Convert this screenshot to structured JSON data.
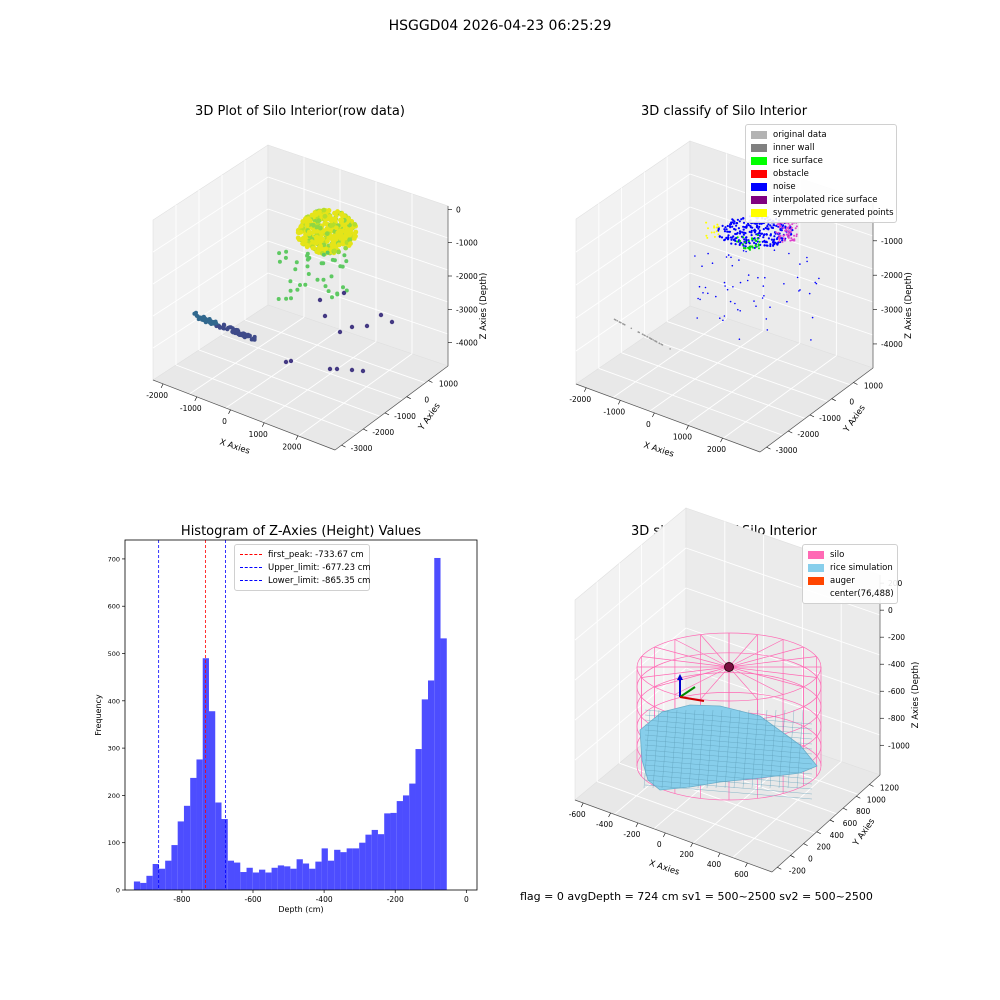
{
  "figure": {
    "suptitle": "HSGGD04 2026-04-23 06:25:29",
    "status_line": "flag = 0     avgDepth = 724 cm  sv1 = 500~2500  sv2 = 500~2500"
  },
  "chart_data": [
    {
      "type": "scatter",
      "projection": "3d",
      "title": "3D Plot of Silo Interior(row data)",
      "xlabel": "X Axies",
      "ylabel": "Y Axies",
      "zlabel": "Z Axies (Depth)",
      "x_ticks": [
        -2000,
        -1000,
        0,
        1000,
        2000
      ],
      "y_ticks": [
        -3000,
        -2000,
        -1000,
        0,
        1000
      ],
      "z_ticks": [
        0,
        -1000,
        -2000,
        -3000,
        -4000
      ],
      "colormap": "viridis",
      "grid": true
    },
    {
      "type": "scatter",
      "projection": "3d",
      "title": "3D classify of Silo Interior",
      "xlabel": "X Axies",
      "ylabel": "Y Axies",
      "zlabel": "Z Axies (Depth)",
      "x_ticks": [
        -2000,
        -1000,
        0,
        1000,
        2000
      ],
      "y_ticks": [
        -3000,
        -2000,
        -1000,
        0,
        1000
      ],
      "z_ticks": [
        -1000,
        -2000,
        -3000,
        -4000
      ],
      "legend_position": "top-right",
      "legend": [
        {
          "label": "original data",
          "color": "#b3b3b3"
        },
        {
          "label": "inner wall",
          "color": "#808080"
        },
        {
          "label": "rice surface",
          "color": "#00ff00"
        },
        {
          "label": "obstacle",
          "color": "#ff0000"
        },
        {
          "label": "noise",
          "color": "#0000ff"
        },
        {
          "label": "interpolated rice surface",
          "color": "#800080"
        },
        {
          "label": "symmetric generated points",
          "color": "#ffff00"
        }
      ],
      "grid": true
    },
    {
      "type": "bar",
      "title": "Histogram of Z-Axies (Height) Values",
      "xlabel": "Depth (cm)",
      "ylabel": "Frequency",
      "bar_color": "#4d4dff",
      "xlim": [
        -960,
        30
      ],
      "ylim": [
        0,
        740
      ],
      "x_ticks": [
        -800,
        -600,
        -400,
        -200,
        0
      ],
      "y_ticks": [
        0,
        100,
        200,
        300,
        400,
        500,
        600,
        700
      ],
      "bin_start": -935,
      "bin_width": 17.6,
      "values": [
        18,
        15,
        30,
        55,
        45,
        62,
        95,
        145,
        178,
        237,
        276,
        490,
        378,
        185,
        150,
        62,
        58,
        38,
        47,
        37,
        43,
        37,
        47,
        52,
        50,
        45,
        65,
        56,
        45,
        60,
        88,
        62,
        85,
        80,
        88,
        88,
        100,
        117,
        127,
        118,
        162,
        163,
        188,
        200,
        225,
        298,
        403,
        443,
        702,
        532
      ],
      "vlines": [
        {
          "label": "first_peak: -733.67 cm",
          "x": -733.67,
          "color": "#ff0000"
        },
        {
          "label": "Upper_limit: -677.23 cm",
          "x": -677.23,
          "color": "#0000ff"
        },
        {
          "label": "Lower_limit: -865.35 cm",
          "x": -865.35,
          "color": "#0000ff"
        }
      ],
      "legend_position": "top-center"
    },
    {
      "type": "surface",
      "projection": "3d",
      "title": "3D simulation of Silo Interior",
      "xlabel": "X Axies",
      "ylabel": "Y Axies",
      "zlabel": "Z Axies (Depth)",
      "x_ticks": [
        -600,
        -400,
        -200,
        0,
        200,
        400,
        600
      ],
      "y_ticks": [
        -200,
        0,
        200,
        400,
        600,
        800,
        1000,
        1200
      ],
      "z_ticks": [
        200,
        0,
        -200,
        -400,
        -600,
        -800,
        -1000
      ],
      "legend_position": "top-right",
      "legend": [
        {
          "label": "silo",
          "color": "#ff69b4"
        },
        {
          "label": "rice simulation",
          "color": "#87ceeb"
        },
        {
          "label": "auger",
          "color": "#ff4500"
        },
        {
          "label": "center(76,488)",
          "color": ""
        }
      ],
      "grid": true
    }
  ]
}
